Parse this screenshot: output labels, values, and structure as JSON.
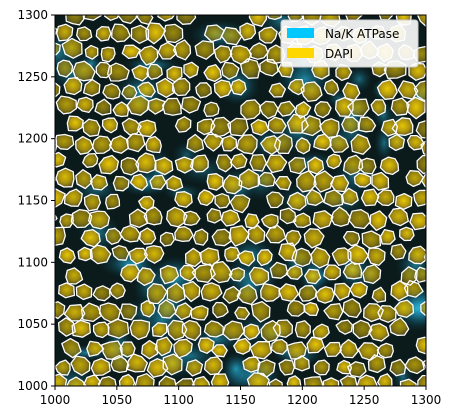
{
  "image": {
    "description_colors": {
      "membrane": "#00c8ff",
      "nucleus": "#ffd700",
      "background": "#000000",
      "segmentation_outline": "#ffffff"
    },
    "x_axis": {
      "range": [
        1000,
        1300
      ],
      "ticks": [
        "1000",
        "1050",
        "1100",
        "1150",
        "1200",
        "1250",
        "1300"
      ]
    },
    "y_axis": {
      "range": [
        1000,
        1300
      ],
      "ticks": [
        "1000",
        "1050",
        "1100",
        "1150",
        "1200",
        "1250",
        "1300"
      ]
    }
  },
  "legend": {
    "placement": "top-right",
    "items": [
      {
        "label": "Na/K ATPase",
        "color": "#00c8ff"
      },
      {
        "label": "DAPI",
        "color": "#ffd700"
      }
    ]
  }
}
